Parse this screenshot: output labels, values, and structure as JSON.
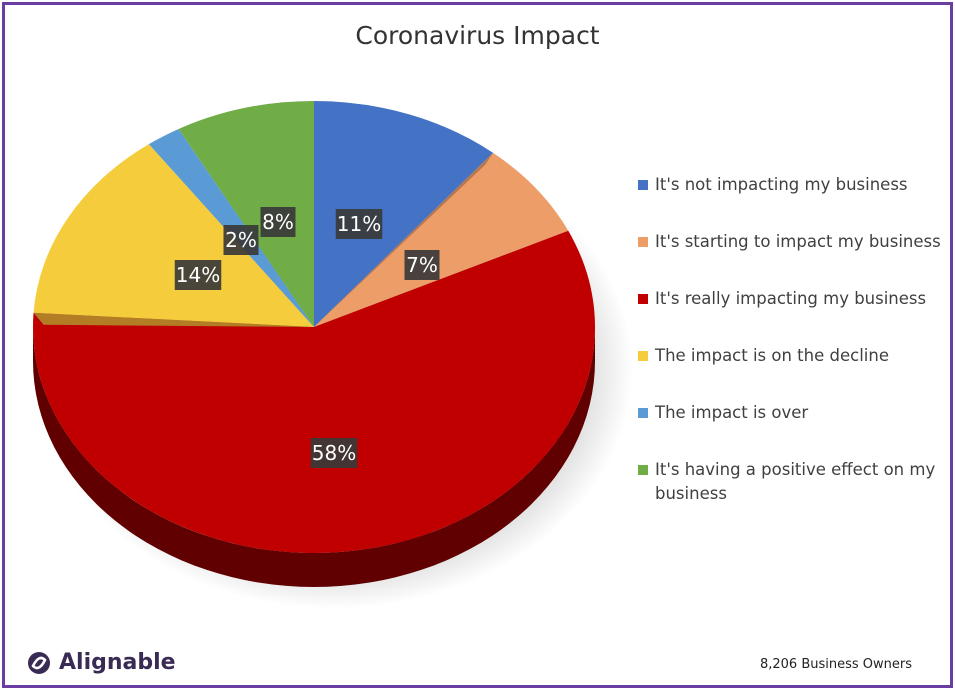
{
  "chart_data": {
    "type": "pie",
    "title": "Coronavirus Impact",
    "slices": [
      {
        "label": "It's not impacting my business",
        "value": 11,
        "color": "#4472c4",
        "data_label": "11%"
      },
      {
        "label": "It's starting to impact my business",
        "value": 7,
        "color": "#ed9d68",
        "data_label": "7%"
      },
      {
        "label": "It's really impacting my business",
        "value": 58,
        "color": "#c00000",
        "data_label": "58%"
      },
      {
        "label": "The impact is on the decline",
        "value": 14,
        "color": "#f5cc3c",
        "data_label": "14%"
      },
      {
        "label": "The impact is over",
        "value": 2,
        "color": "#5b9bd5",
        "data_label": "2%"
      },
      {
        "label": "It's having a positive effect on my business",
        "value": 8,
        "color": "#70ad47",
        "data_label": "8%"
      }
    ],
    "legend_position": "right"
  },
  "footer": {
    "brand": "Alignable",
    "note": "8,206 Business Owners"
  },
  "colors": {
    "frame": "#6a3ea1",
    "label_bg": "#3a3a3a"
  }
}
